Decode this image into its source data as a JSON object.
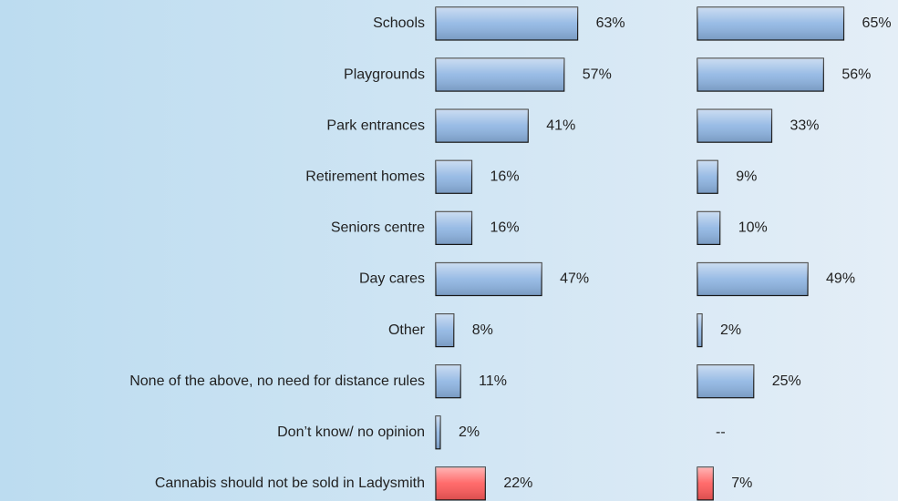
{
  "chart_data": {
    "type": "bar",
    "orientation": "horizontal",
    "categories": [
      "Schools",
      "Playgrounds",
      "Park entrances",
      "Retirement homes",
      "Seniors centre",
      "Day cares",
      "Other",
      "None of the above, no need for distance rules",
      "Don’t know/ no opinion",
      "Cannabis should not be sold in Ladysmith"
    ],
    "series": [
      {
        "values": [
          63,
          57,
          41,
          16,
          16,
          47,
          8,
          11,
          2,
          22
        ],
        "value_labels": [
          "63%",
          "57%",
          "41%",
          "16%",
          "16%",
          "47%",
          "8%",
          "11%",
          "2%",
          "22%"
        ],
        "colors": [
          "#8db4e2",
          "#8db4e2",
          "#8db4e2",
          "#8db4e2",
          "#8db4e2",
          "#8db4e2",
          "#8db4e2",
          "#8db4e2",
          "#8db4e2",
          "#ff5a5a"
        ]
      },
      {
        "values": [
          65,
          56,
          33,
          9,
          10,
          49,
          2,
          25,
          null,
          7
        ],
        "value_labels": [
          "65%",
          "56%",
          "33%",
          "9%",
          "10%",
          "49%",
          "2%",
          "25%",
          "--",
          "7%"
        ],
        "colors": [
          "#8db4e2",
          "#8db4e2",
          "#8db4e2",
          "#8db4e2",
          "#8db4e2",
          "#8db4e2",
          "#8db4e2",
          "#8db4e2",
          "#8db4e2",
          "#ff5a5a"
        ]
      }
    ]
  }
}
